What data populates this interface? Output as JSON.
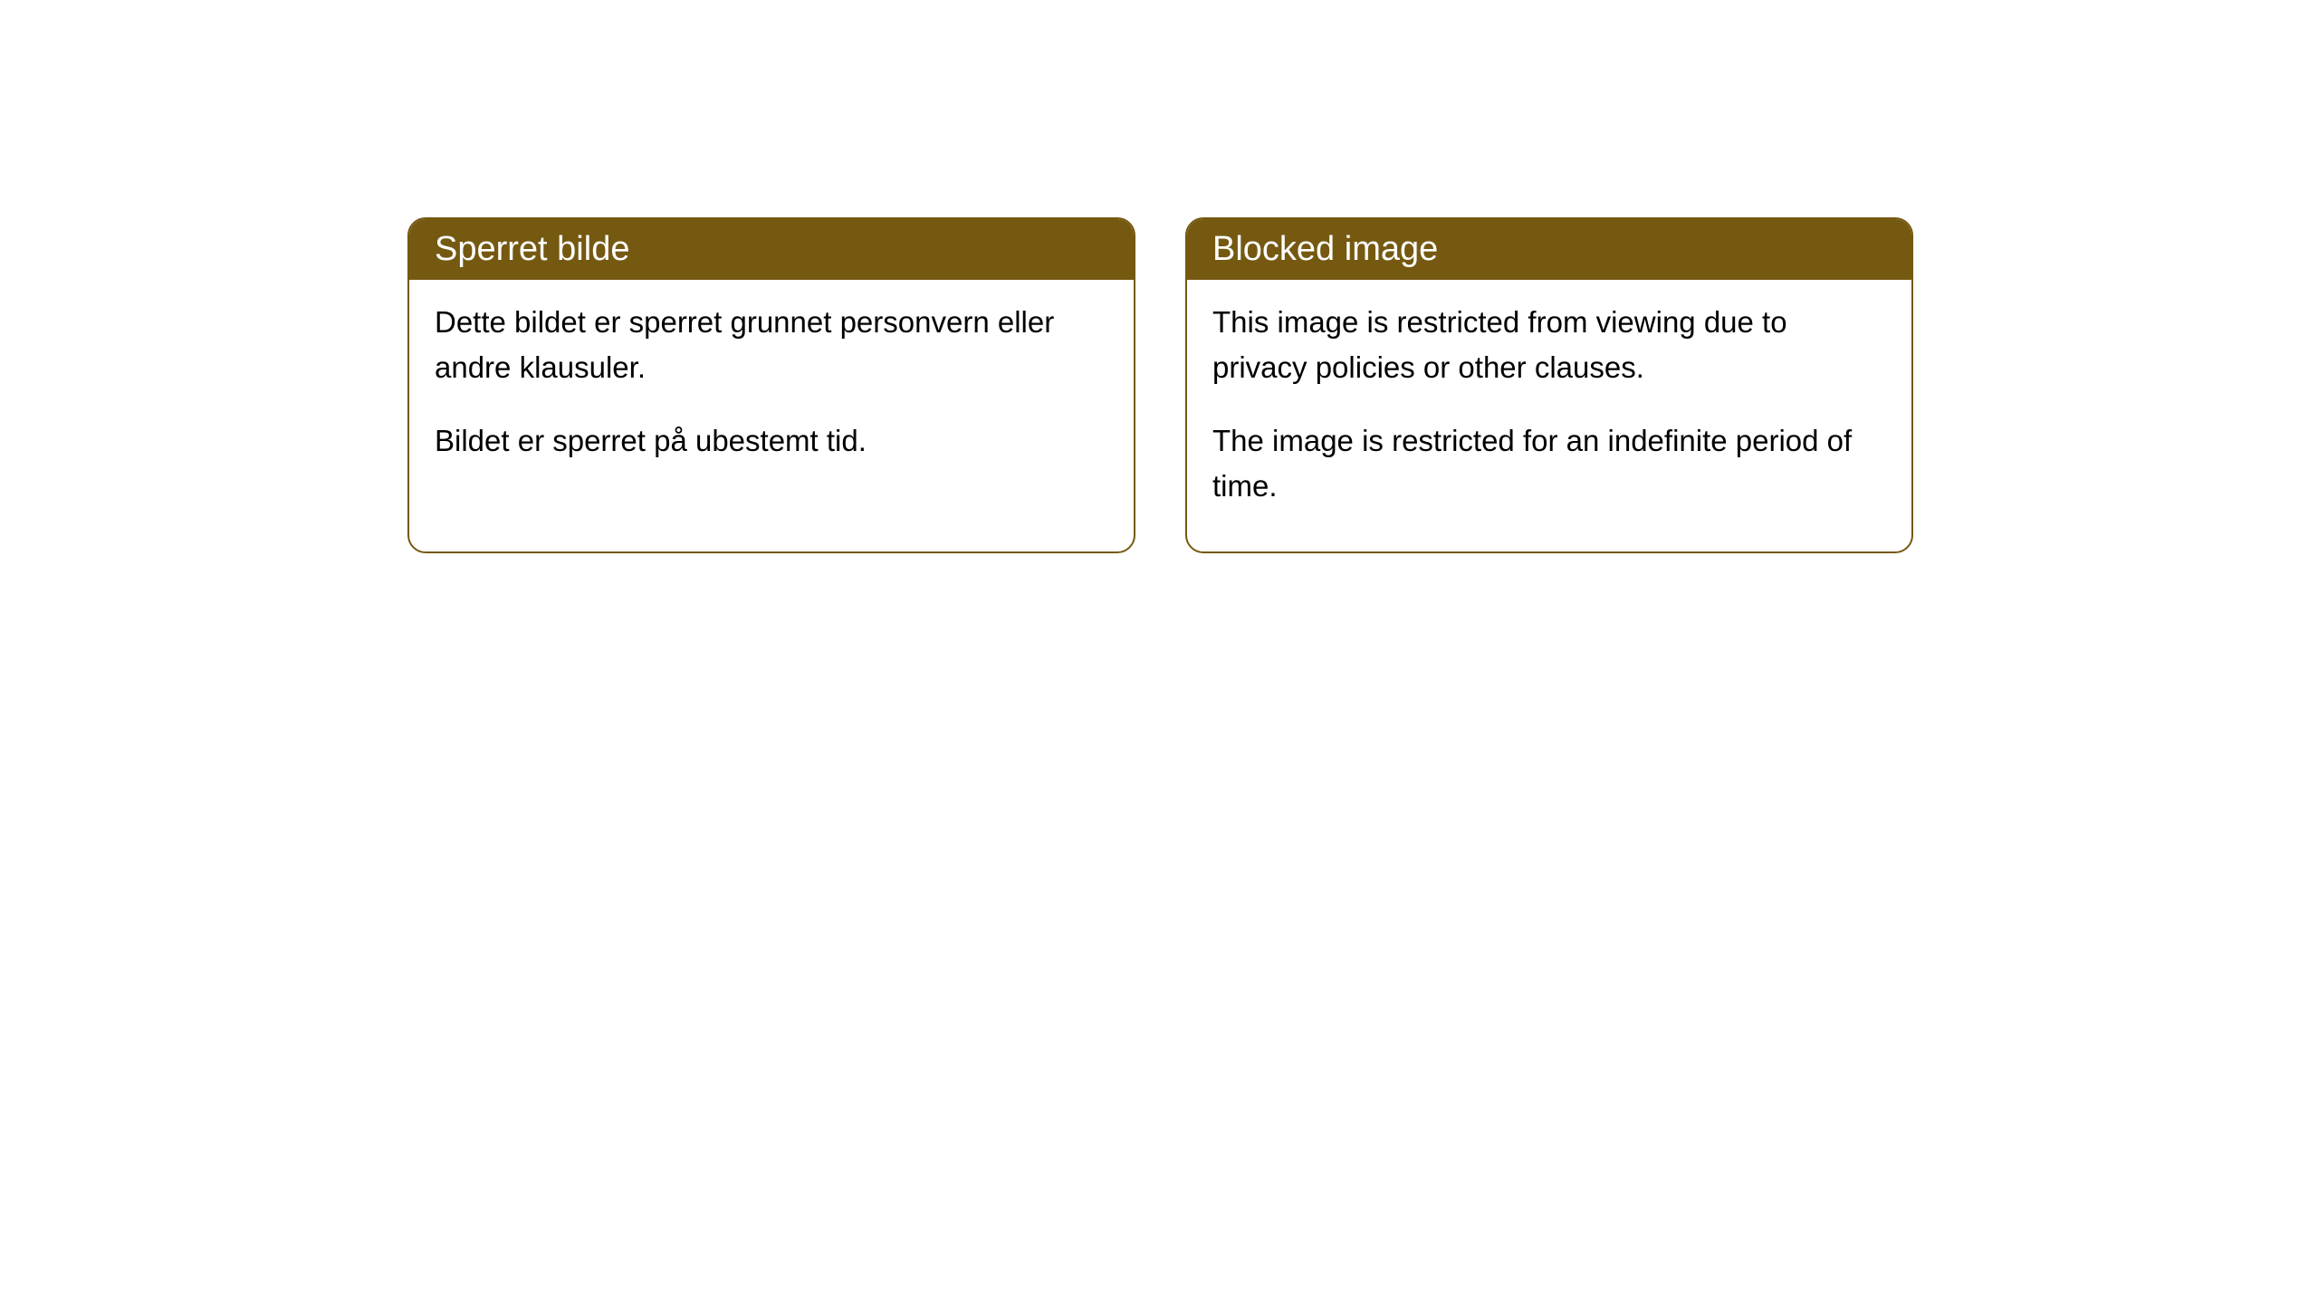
{
  "cards": [
    {
      "title": "Sperret bilde",
      "paragraph1": "Dette bildet er sperret grunnet personvern eller andre klausuler.",
      "paragraph2": "Bildet er sperret på ubestemt tid."
    },
    {
      "title": "Blocked image",
      "paragraph1": "This image is restricted from viewing due to privacy policies or other clauses.",
      "paragraph2": "The image is restricted for an indefinite period of time."
    }
  ],
  "style": {
    "header_bg_color": "#755911",
    "header_text_color": "#ffffff",
    "border_color": "#755911",
    "body_bg_color": "#ffffff",
    "body_text_color": "#000000",
    "border_radius": 20,
    "header_fontsize": 38,
    "body_fontsize": 33
  }
}
